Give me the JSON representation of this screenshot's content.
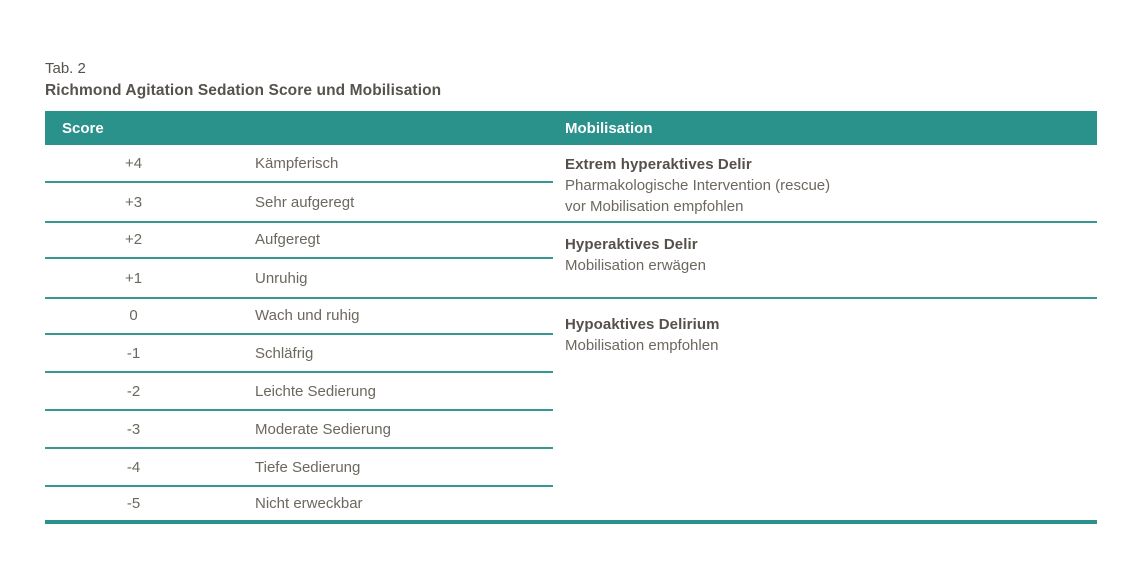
{
  "caption": {
    "tab_label": "Tab. 2",
    "title": "Richmond Agitation Sedation Score und Mobilisation"
  },
  "table": {
    "headers": {
      "score": "Score",
      "mobilisation": "Mobilisation"
    },
    "score_rows": [
      {
        "score": "+4",
        "label": "Kämpferisch"
      },
      {
        "score": "+3",
        "label": "Sehr aufgeregt"
      },
      {
        "score": "+2",
        "label": "Aufgeregt"
      },
      {
        "score": "+1",
        "label": "Unruhig"
      },
      {
        "score": "0",
        "label": "Wach und ruhig"
      },
      {
        "score": "-1",
        "label": "Schläfrig"
      },
      {
        "score": "-2",
        "label": "Leichte Sedierung"
      },
      {
        "score": "-3",
        "label": "Moderate Sedierung"
      },
      {
        "score": "-4",
        "label": "Tiefe Sedierung"
      },
      {
        "score": "-5",
        "label": "Nicht erweckbar"
      }
    ],
    "mobilisation_groups": [
      {
        "heading": "Extrem hyperaktives Delir",
        "lines": [
          "Pharmakologische Intervention (rescue)",
          "vor Mobilisation empfohlen"
        ]
      },
      {
        "heading": "Hyperaktives Delir",
        "lines": [
          "Mobilisation erwägen"
        ]
      },
      {
        "heading": "Hypoaktives Delirium",
        "lines": [
          "Mobilisation empfohlen"
        ]
      }
    ]
  },
  "colors": {
    "header_teal": "#2a918b",
    "divider_teal": "#379791",
    "heading_text": "#55504a",
    "body_text": "#6c675f"
  }
}
